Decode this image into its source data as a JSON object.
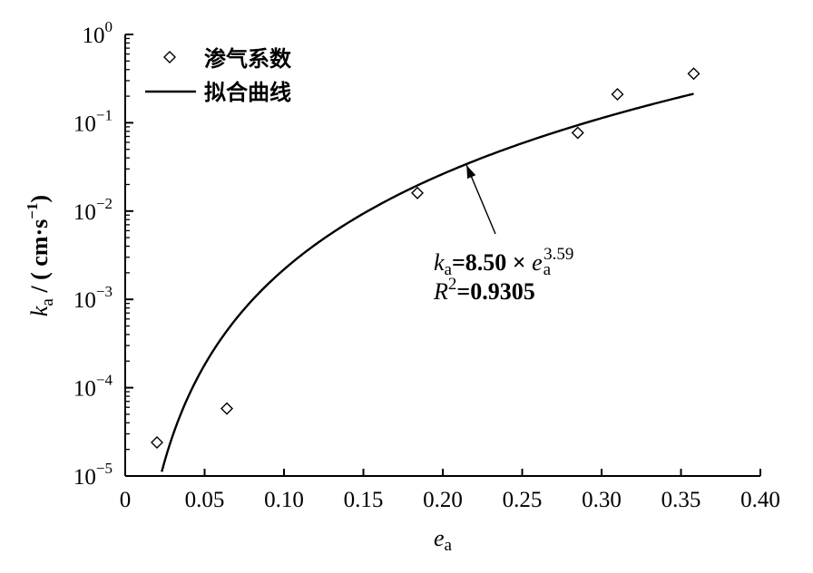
{
  "chart_data": {
    "type": "scatter",
    "xlabel_main": "e",
    "xlabel_sub": "a",
    "ylabel_main": "k",
    "ylabel_sub": "a",
    "ylabel_unit": " / ( cm·s",
    "ylabel_unit_exp": "−1",
    "ylabel_unit_close": ")",
    "x_ticks": [
      "0",
      "0.05",
      "0.10",
      "0.15",
      "0.20",
      "0.25",
      "0.30",
      "0.35",
      "0.40"
    ],
    "x_tick_values": [
      0,
      0.05,
      0.1,
      0.15,
      0.2,
      0.25,
      0.3,
      0.35,
      0.4
    ],
    "y_tick_exponents": [
      "0",
      "−1",
      "−2",
      "−3",
      "−4",
      "−5"
    ],
    "y_tick_base": "10",
    "y_tick_powers": [
      0,
      -1,
      -2,
      -3,
      -4,
      -5
    ],
    "xlim": [
      0,
      0.4
    ],
    "ylim": [
      1e-05,
      1
    ],
    "yscale": "log",
    "legend_position": "top-left",
    "series": [
      {
        "name": "渗气系数",
        "kind": "scatter",
        "marker": "diamond",
        "x": [
          0.02,
          0.064,
          0.184,
          0.285,
          0.31,
          0.358
        ],
        "y": [
          2.4e-05,
          5.8e-05,
          0.016,
          0.077,
          0.21,
          0.36
        ]
      },
      {
        "name": "拟合曲线",
        "kind": "line",
        "formula": {
          "coef": 8.5,
          "exponent": 3.59
        },
        "x_range": [
          0.023,
          0.358
        ]
      }
    ],
    "annotation": {
      "eq_k": "k",
      "eq_k_sub": "a",
      "eq_rhs": "=8.50 × ",
      "eq_e": "e",
      "eq_e_sub": "a",
      "eq_e_exp": "3.59",
      "r2_r": "R",
      "r2_exp": "2",
      "r2_val": "=0.9305",
      "arrow_target": {
        "x": 0.215,
        "y": 0.033
      }
    }
  }
}
